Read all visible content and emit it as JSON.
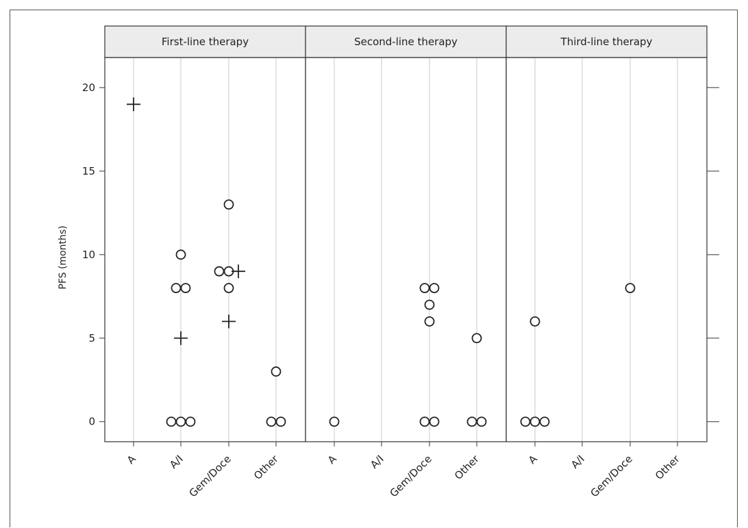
{
  "chart_data": {
    "type": "scatter",
    "ylabel": "PFS (months)",
    "ylim": [
      -1.2,
      21.8
    ],
    "yticks": [
      0,
      5,
      10,
      15,
      20
    ],
    "categories": [
      "A",
      "A/I",
      "Gem/Doce",
      "Other"
    ],
    "panels": [
      {
        "title": "First-line therapy",
        "points": [
          {
            "x": "A",
            "y": 19,
            "marker": "plus"
          },
          {
            "x": "A/I",
            "y": 10,
            "marker": "circle"
          },
          {
            "x": "A/I",
            "y": 8,
            "marker": "circle"
          },
          {
            "x": "A/I",
            "y": 8,
            "marker": "circle"
          },
          {
            "x": "A/I",
            "y": 5,
            "marker": "plus"
          },
          {
            "x": "A/I",
            "y": 0,
            "marker": "circle"
          },
          {
            "x": "A/I",
            "y": 0,
            "marker": "circle"
          },
          {
            "x": "A/I",
            "y": 0,
            "marker": "circle"
          },
          {
            "x": "Gem/Doce",
            "y": 13,
            "marker": "circle"
          },
          {
            "x": "Gem/Doce",
            "y": 9,
            "marker": "circle"
          },
          {
            "x": "Gem/Doce",
            "y": 9,
            "marker": "circle"
          },
          {
            "x": "Gem/Doce",
            "y": 9,
            "marker": "plus"
          },
          {
            "x": "Gem/Doce",
            "y": 8,
            "marker": "circle"
          },
          {
            "x": "Gem/Doce",
            "y": 6,
            "marker": "plus"
          },
          {
            "x": "Other",
            "y": 3,
            "marker": "circle"
          },
          {
            "x": "Other",
            "y": 0,
            "marker": "circle"
          },
          {
            "x": "Other",
            "y": 0,
            "marker": "circle"
          }
        ]
      },
      {
        "title": "Second-line therapy",
        "points": [
          {
            "x": "A",
            "y": 0,
            "marker": "circle"
          },
          {
            "x": "Gem/Doce",
            "y": 8,
            "marker": "circle"
          },
          {
            "x": "Gem/Doce",
            "y": 8,
            "marker": "circle"
          },
          {
            "x": "Gem/Doce",
            "y": 7,
            "marker": "circle"
          },
          {
            "x": "Gem/Doce",
            "y": 6,
            "marker": "circle"
          },
          {
            "x": "Gem/Doce",
            "y": 0,
            "marker": "circle"
          },
          {
            "x": "Gem/Doce",
            "y": 0,
            "marker": "circle"
          },
          {
            "x": "Other",
            "y": 5,
            "marker": "circle"
          },
          {
            "x": "Other",
            "y": 0,
            "marker": "circle"
          },
          {
            "x": "Other",
            "y": 0,
            "marker": "circle"
          }
        ]
      },
      {
        "title": "Third-line therapy",
        "points": [
          {
            "x": "A",
            "y": 6,
            "marker": "circle"
          },
          {
            "x": "A",
            "y": 0,
            "marker": "circle"
          },
          {
            "x": "A",
            "y": 0,
            "marker": "circle"
          },
          {
            "x": "A",
            "y": 0,
            "marker": "circle"
          },
          {
            "x": "Gem/Doce",
            "y": 8,
            "marker": "circle"
          }
        ]
      }
    ],
    "grid": "vertical lines at categories",
    "legend": "none"
  }
}
